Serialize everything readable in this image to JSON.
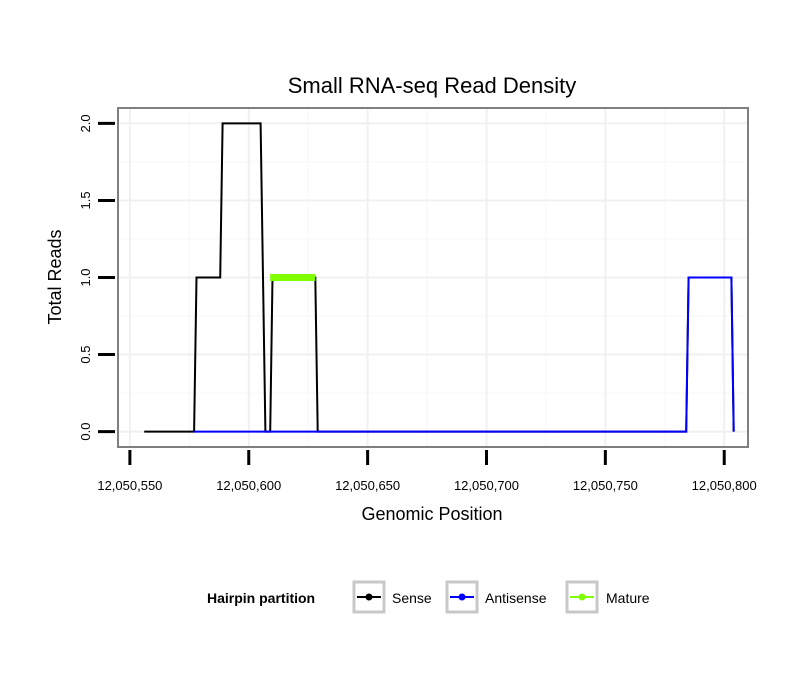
{
  "chart_data": {
    "type": "line",
    "title": "Small RNA-seq Read Density",
    "xlabel": "Genomic Position",
    "ylabel": "Total Reads",
    "xlim": [
      12050545,
      12050810
    ],
    "ylim": [
      -0.1,
      2.1
    ],
    "x_ticks": [
      12050550,
      12050600,
      12050650,
      12050700,
      12050750,
      12050800
    ],
    "x_tick_labels": [
      "12,050,550",
      "12,050,600",
      "12,050,650",
      "12,050,700",
      "12,050,750",
      "12,050,800"
    ],
    "y_ticks": [
      0,
      0.5,
      1,
      1.5,
      2
    ],
    "y_tick_labels": [
      "0.0",
      "0.5",
      "1.0",
      "1.5",
      "2.0"
    ],
    "grid": true,
    "legend": {
      "title": "Hairpin partition",
      "position": "bottom",
      "entries": [
        "Sense",
        "Antisense",
        "Mature"
      ]
    },
    "series": [
      {
        "name": "Sense",
        "color": "#000000",
        "x": [
          12050556,
          12050577,
          12050578,
          12050588,
          12050589,
          12050605,
          12050607,
          12050609,
          12050610,
          12050628,
          12050629,
          12050784,
          12050785,
          12050803,
          12050804
        ],
        "values": [
          0,
          0,
          1,
          1,
          2,
          2,
          0,
          0,
          1,
          1,
          0,
          0,
          1,
          1,
          0
        ]
      },
      {
        "name": "Antisense",
        "color": "#0000ff",
        "x": [
          12050577,
          12050784,
          12050785,
          12050803,
          12050804
        ],
        "values": [
          0,
          0,
          1,
          1,
          0
        ]
      },
      {
        "name": "Mature",
        "color": "#80ff00",
        "x": [
          12050609,
          12050628
        ],
        "values": [
          1,
          1
        ]
      }
    ]
  }
}
